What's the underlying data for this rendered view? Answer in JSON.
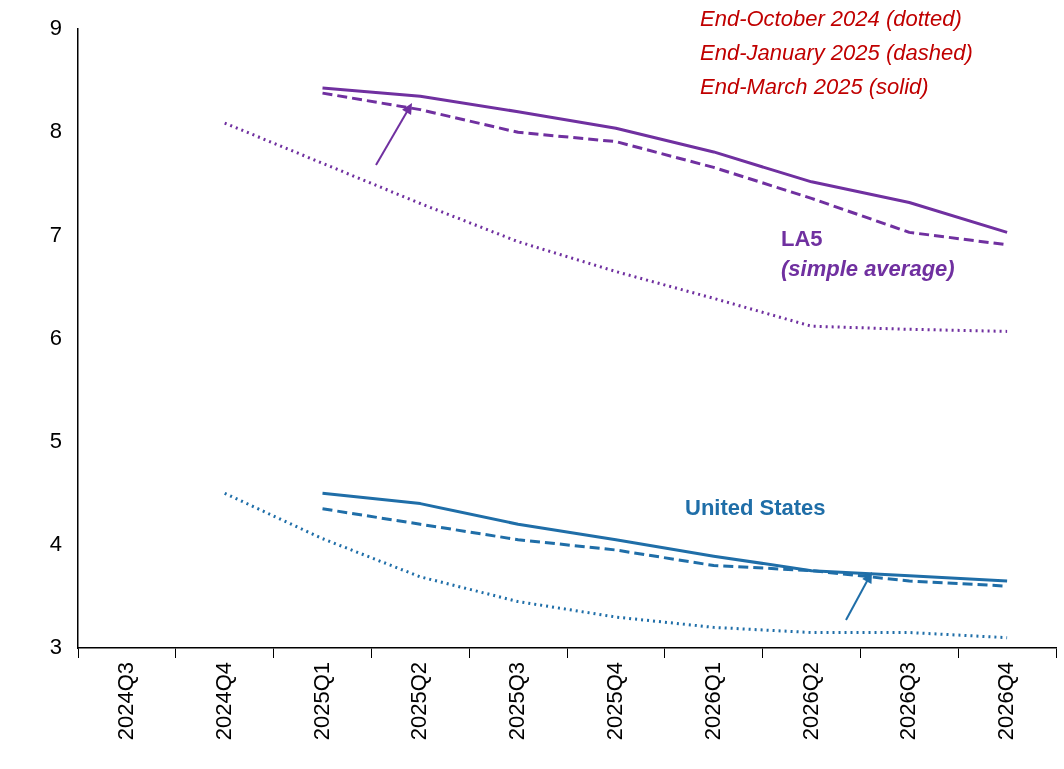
{
  "chart_data": {
    "type": "line",
    "categories": [
      "2024Q3",
      "2024Q4",
      "2025Q1",
      "2025Q2",
      "2025Q3",
      "2025Q4",
      "2026Q1",
      "2026Q2",
      "2026Q3",
      "2026Q4"
    ],
    "series": [
      {
        "color": "#7030a0",
        "line_style": "dotted",
        "values": [
          null,
          8.09,
          7.7,
          7.31,
          6.94,
          6.65,
          6.39,
          6.12,
          6.09,
          6.07
        ]
      },
      {
        "color": "#7030a0",
        "line_style": "dashed",
        "values": [
          null,
          null,
          8.38,
          8.22,
          8.0,
          7.91,
          7.66,
          7.36,
          7.03,
          6.91
        ]
      },
      {
        "color": "#7030a0",
        "line_style": "solid",
        "values": [
          null,
          null,
          8.43,
          8.35,
          8.2,
          8.04,
          7.81,
          7.52,
          7.32,
          7.03
        ]
      },
      {
        "color": "#1f6ea8",
        "line_style": "dotted",
        "values": [
          null,
          4.5,
          4.06,
          3.69,
          3.45,
          3.3,
          3.2,
          3.15,
          3.15,
          3.1
        ]
      },
      {
        "color": "#1f6ea8",
        "line_style": "dashed",
        "values": [
          null,
          null,
          4.35,
          4.2,
          4.05,
          3.95,
          3.8,
          3.75,
          3.65,
          3.6
        ]
      },
      {
        "color": "#1f6ea8",
        "line_style": "solid",
        "values": [
          null,
          null,
          4.5,
          4.4,
          4.2,
          4.05,
          3.89,
          3.75,
          3.7,
          3.65
        ]
      }
    ],
    "ylim": [
      3,
      9
    ],
    "yticks": [
      3,
      4,
      5,
      6,
      7,
      8,
      9
    ],
    "grid": false,
    "legend": false,
    "marker": "none",
    "annotations": [
      "End-October 2024 (dotted)",
      "End-January 2025 (dashed)",
      "End-March 2025 (solid)",
      "LA5",
      "(simple average)",
      "United States"
    ]
  }
}
